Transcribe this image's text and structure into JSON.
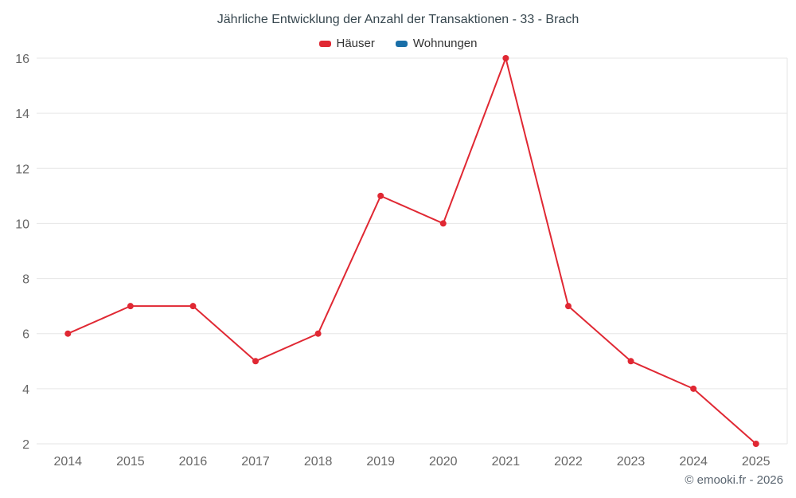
{
  "title": "Jährliche Entwicklung der Anzahl der Transaktionen - 33 - Brach",
  "legend": [
    {
      "label": "Häuser",
      "color": "#e02833"
    },
    {
      "label": "Wohnungen",
      "color": "#1a6fa8"
    }
  ],
  "copyright": "© emooki.fr - 2026",
  "chart_data": {
    "type": "line",
    "title": "Jährliche Entwicklung der Anzahl der Transaktionen - 33 - Brach",
    "categories": [
      "2014",
      "2015",
      "2016",
      "2017",
      "2018",
      "2019",
      "2020",
      "2021",
      "2022",
      "2023",
      "2024",
      "2025"
    ],
    "series": [
      {
        "name": "Häuser",
        "color": "#e02833",
        "values": [
          6,
          7,
          7,
          5,
          6,
          11,
          10,
          16,
          7,
          5,
          4,
          2
        ]
      },
      {
        "name": "Wohnungen",
        "color": "#1a6fa8",
        "values": []
      }
    ],
    "xlabel": "",
    "ylabel": "",
    "ylim": [
      2,
      16
    ],
    "yticks": [
      2,
      4,
      6,
      8,
      10,
      12,
      14,
      16
    ],
    "grid": "horizontal",
    "grid_color": "#e6e6e6",
    "tick_color": "#666666",
    "legend_position": "top"
  }
}
